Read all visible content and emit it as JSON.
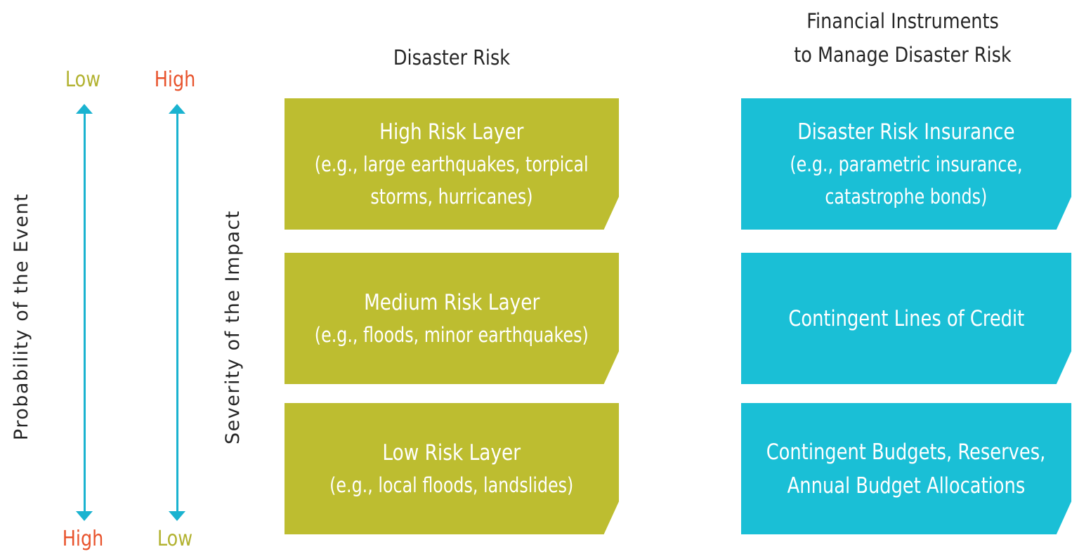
{
  "colors": {
    "olive": "#bdbd30",
    "cyan": "#1abfd6",
    "arrow": "#1ab3d0",
    "low_label": "#b2b230",
    "high_label": "#e8532c"
  },
  "axes": {
    "probability": {
      "title": "Probability of the Event",
      "top_label": "Low",
      "bottom_label": "High"
    },
    "severity": {
      "title": "Severity of the Impact",
      "top_label": "High",
      "bottom_label": "Low"
    }
  },
  "columns": {
    "disaster_risk": {
      "header": "Disaster Risk"
    },
    "instruments": {
      "header_line1": "Financial Instruments",
      "header_line2": "to Manage Disaster Risk"
    }
  },
  "risk_layers": [
    {
      "title": "High Risk Layer",
      "example_line1": "(e.g., large earthquakes, torpical",
      "example_line2": "storms, hurricanes)"
    },
    {
      "title": "Medium Risk Layer",
      "example_line1": "(e.g., floods, minor earthquakes)"
    },
    {
      "title": "Low Risk Layer",
      "example_line1": "(e.g., local floods, landslides)"
    }
  ],
  "instruments": [
    {
      "title": "Disaster Risk Insurance",
      "example_line1": "(e.g., parametric insurance,",
      "example_line2": "catastrophe bonds)"
    },
    {
      "line1": "Contingent Lines of Credit"
    },
    {
      "line1": "Contingent Budgets, Reserves,",
      "line2": "Annual Budget Allocations"
    }
  ]
}
